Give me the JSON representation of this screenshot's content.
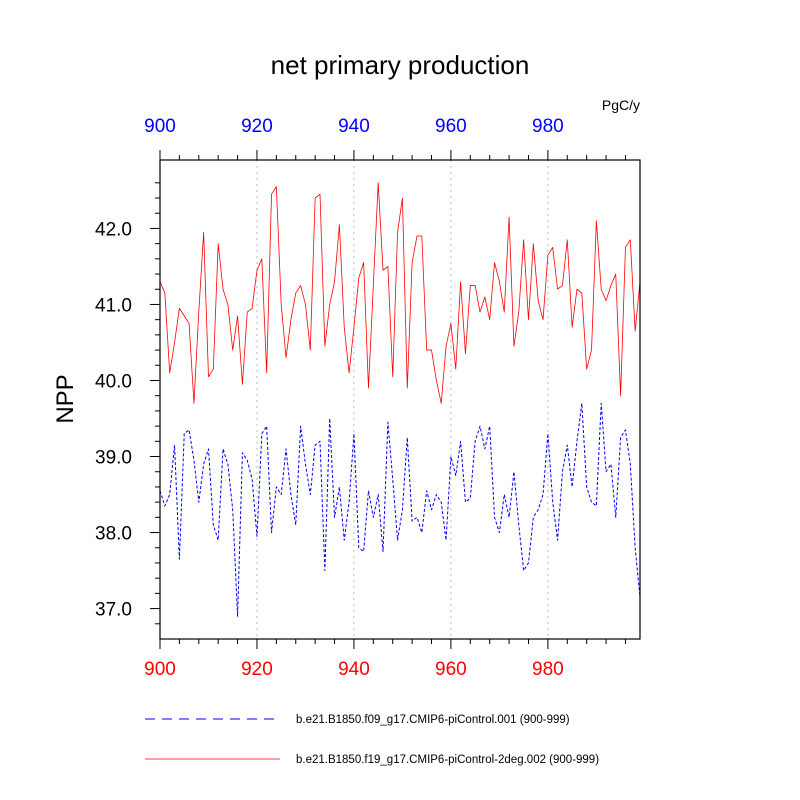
{
  "chart_data": {
    "type": "line",
    "title": "net primary production",
    "units_label": "PgC/y",
    "ylabel": "NPP",
    "xlim": [
      900,
      999
    ],
    "ylim": [
      36.6,
      42.9
    ],
    "x_ticks": [
      900,
      920,
      940,
      960,
      980
    ],
    "x_tick_labels": [
      "900",
      "920",
      "940",
      "960",
      "980"
    ],
    "y_ticks": [
      37.0,
      38.0,
      39.0,
      40.0,
      41.0,
      42.0
    ],
    "y_tick_labels": [
      "37.0",
      "38.0",
      "39.0",
      "40.0",
      "41.0",
      "42.0"
    ],
    "grid_x": [
      920,
      940,
      960,
      980
    ],
    "colors": {
      "top_axis": "#0000ff",
      "bottom_axis": "#ff0000",
      "grid": "#bbbbbb"
    },
    "x_start": 900,
    "series": [
      {
        "name": "b.e21.B1850.f09_g17.CMIP6-piControl.001 (900-999)",
        "color": "#0000ff",
        "dash": "dashed",
        "values": [
          38.55,
          38.35,
          38.5,
          39.15,
          37.65,
          39.3,
          39.35,
          38.95,
          38.4,
          38.9,
          39.1,
          38.1,
          37.9,
          39.1,
          38.9,
          38.3,
          36.9,
          39.05,
          38.95,
          38.7,
          37.95,
          39.3,
          39.4,
          38.0,
          38.6,
          38.5,
          39.1,
          38.5,
          38.1,
          39.4,
          38.9,
          38.5,
          39.15,
          39.2,
          37.5,
          39.5,
          38.2,
          38.6,
          37.9,
          38.4,
          39.3,
          37.8,
          37.75,
          38.55,
          38.2,
          38.5,
          37.75,
          39.45,
          38.7,
          37.9,
          38.3,
          39.25,
          38.15,
          38.2,
          38.0,
          38.55,
          38.3,
          38.5,
          38.4,
          37.9,
          39.0,
          38.75,
          39.2,
          38.4,
          38.45,
          39.2,
          39.4,
          39.1,
          39.4,
          38.2,
          38.0,
          38.5,
          38.2,
          38.8,
          38.1,
          37.5,
          37.6,
          38.2,
          38.3,
          38.5,
          39.3,
          38.4,
          37.9,
          38.8,
          39.15,
          38.6,
          39.2,
          39.7,
          38.6,
          38.4,
          38.35,
          39.7,
          38.8,
          38.9,
          38.2,
          39.25,
          39.35,
          38.9,
          37.8,
          37.15
        ]
      },
      {
        "name": "b.e21.B1850.f19_g17.CMIP6-piControl-2deg.002 (900-999)",
        "color": "#ff0000",
        "dash": "solid",
        "values": [
          41.3,
          41.15,
          40.1,
          40.5,
          40.95,
          40.85,
          40.75,
          39.7,
          40.9,
          41.95,
          40.05,
          40.15,
          41.8,
          41.2,
          41.0,
          40.4,
          40.85,
          39.95,
          40.9,
          40.95,
          41.45,
          41.6,
          40.1,
          42.45,
          42.55,
          41.0,
          40.3,
          40.8,
          41.15,
          41.25,
          41.0,
          40.4,
          42.4,
          42.45,
          40.45,
          41.0,
          41.3,
          42.05,
          40.7,
          40.1,
          40.7,
          41.35,
          41.55,
          39.9,
          41.25,
          42.6,
          41.45,
          41.5,
          40.05,
          41.95,
          42.4,
          39.9,
          41.55,
          41.9,
          41.9,
          40.4,
          40.4,
          40.0,
          39.7,
          40.45,
          40.75,
          40.15,
          41.3,
          40.35,
          41.25,
          41.25,
          40.9,
          41.1,
          40.8,
          41.55,
          41.3,
          40.9,
          42.15,
          40.45,
          40.9,
          41.85,
          40.8,
          41.8,
          41.05,
          40.8,
          41.65,
          41.75,
          41.2,
          41.25,
          41.85,
          40.7,
          41.2,
          41.15,
          40.15,
          40.4,
          42.1,
          41.2,
          41.05,
          41.25,
          41.4,
          39.8,
          41.75,
          41.85,
          40.65,
          41.3
        ]
      }
    ]
  }
}
